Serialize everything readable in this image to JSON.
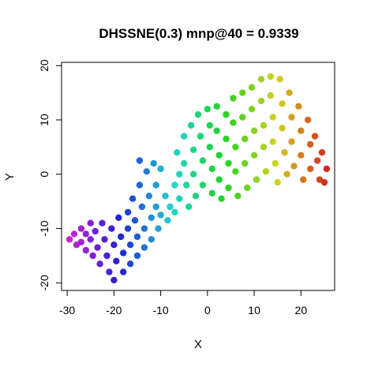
{
  "chart_data": {
    "type": "scatter",
    "title": "DHSSNE(0.3) mnp@40 = 0.9339",
    "xlabel": "X",
    "ylabel": "Y",
    "xlim": [
      -31.2,
      27.2
    ],
    "ylim": [
      -21.4,
      20.6
    ],
    "xticks": [
      -30,
      -20,
      -10,
      0,
      10,
      20
    ],
    "yticks": [
      -20,
      -10,
      0,
      10,
      20
    ],
    "xtick_labels": [
      "-30",
      "-20",
      "-10",
      "0",
      "10",
      "20"
    ],
    "ytick_labels": [
      "-20",
      "-10",
      "0",
      "10",
      "20"
    ],
    "grid": false,
    "legend": "none",
    "color_encoding": "rainbow gradient along manifold, magenta (left) through blue, cyan, green, yellow to red (right)",
    "point_color": "#3fbf3f",
    "series": [
      {
        "points": [
          [
            -29.5,
            -12.0
          ],
          [
            -28.5,
            -11.0
          ],
          [
            -28.0,
            -13.0
          ],
          [
            -27.0,
            -10.0
          ],
          [
            -27.0,
            -12.5
          ],
          [
            -26.0,
            -11.0
          ],
          [
            -26.0,
            -14.0
          ],
          [
            -25.0,
            -9.0
          ],
          [
            -25.0,
            -12.0
          ],
          [
            -24.5,
            -15.0
          ],
          [
            -24.0,
            -10.5
          ],
          [
            -23.5,
            -13.5
          ],
          [
            -23.0,
            -16.5
          ],
          [
            -22.5,
            -9.0
          ],
          [
            -22.0,
            -12.0
          ],
          [
            -21.5,
            -15.0
          ],
          [
            -21.0,
            -18.0
          ],
          [
            -20.5,
            -10.0
          ],
          [
            -20.0,
            -13.0
          ],
          [
            -20.0,
            -19.5
          ],
          [
            -19.5,
            -16.0
          ],
          [
            -19.0,
            -8.0
          ],
          [
            -18.5,
            -11.5
          ],
          [
            -18.0,
            -14.5
          ],
          [
            -18.0,
            -18.0
          ],
          [
            -17.0,
            -7.0
          ],
          [
            -17.0,
            -10.0
          ],
          [
            -16.5,
            -13.0
          ],
          [
            -16.5,
            -16.5
          ],
          [
            -16.0,
            -4.5
          ],
          [
            -15.5,
            -8.5
          ],
          [
            -15.0,
            -11.5
          ],
          [
            -15.0,
            -15.0
          ],
          [
            -14.5,
            2.5
          ],
          [
            -14.5,
            -2.0
          ],
          [
            -14.0,
            -6.0
          ],
          [
            -13.5,
            -10.0
          ],
          [
            -13.5,
            -13.5
          ],
          [
            -13.0,
            0.5
          ],
          [
            -12.5,
            -4.0
          ],
          [
            -12.0,
            -8.0
          ],
          [
            -12.0,
            -12.0
          ],
          [
            -11.5,
            2.0
          ],
          [
            -11.0,
            -2.0
          ],
          [
            -11.0,
            -6.0
          ],
          [
            -10.5,
            -10.0
          ],
          [
            -10.0,
            1.0
          ],
          [
            -10.0,
            -7.5
          ],
          [
            -9.0,
            -4.0
          ],
          [
            -8.5,
            -8.5
          ],
          [
            -8.0,
            -6.0
          ],
          [
            -7.0,
            -2.0
          ],
          [
            -7.0,
            -7.0
          ],
          [
            -6.5,
            4.0
          ],
          [
            -6.0,
            0.0
          ],
          [
            -6.0,
            -4.5
          ],
          [
            -5.0,
            7.0
          ],
          [
            -5.0,
            2.0
          ],
          [
            -4.5,
            -2.0
          ],
          [
            -4.0,
            -6.0
          ],
          [
            -3.5,
            9.0
          ],
          [
            -3.0,
            4.5
          ],
          [
            -3.0,
            0.0
          ],
          [
            -2.5,
            -4.0
          ],
          [
            -2.0,
            11.0
          ],
          [
            -1.5,
            7.0
          ],
          [
            -1.0,
            2.5
          ],
          [
            -1.0,
            -2.0
          ],
          [
            0.0,
            12.0
          ],
          [
            0.5,
            9.0
          ],
          [
            0.5,
            5.0
          ],
          [
            1.0,
            1.0
          ],
          [
            1.0,
            -3.5
          ],
          [
            2.0,
            12.5
          ],
          [
            2.0,
            8.0
          ],
          [
            2.5,
            3.5
          ],
          [
            2.5,
            -1.0
          ],
          [
            3.0,
            -4.5
          ],
          [
            4.0,
            11.0
          ],
          [
            4.0,
            6.5
          ],
          [
            4.5,
            2.0
          ],
          [
            4.5,
            -2.5
          ],
          [
            5.5,
            14.0
          ],
          [
            5.5,
            9.5
          ],
          [
            6.0,
            5.0
          ],
          [
            6.0,
            0.5
          ],
          [
            6.5,
            -4.0
          ],
          [
            7.5,
            15.0
          ],
          [
            7.5,
            10.5
          ],
          [
            8.0,
            6.5
          ],
          [
            8.0,
            2.0
          ],
          [
            8.5,
            -2.5
          ],
          [
            9.5,
            16.0
          ],
          [
            9.5,
            12.0
          ],
          [
            10.0,
            8.0
          ],
          [
            10.0,
            3.5
          ],
          [
            10.5,
            -1.0
          ],
          [
            11.5,
            17.5
          ],
          [
            11.5,
            13.5
          ],
          [
            12.0,
            9.0
          ],
          [
            12.0,
            5.0
          ],
          [
            12.5,
            0.5
          ],
          [
            13.5,
            18.0
          ],
          [
            13.5,
            14.5
          ],
          [
            14.0,
            10.5
          ],
          [
            14.0,
            6.0
          ],
          [
            14.5,
            2.0
          ],
          [
            15.0,
            -1.5
          ],
          [
            15.5,
            17.5
          ],
          [
            16.0,
            13.0
          ],
          [
            16.0,
            8.5
          ],
          [
            16.5,
            4.0
          ],
          [
            17.0,
            0.0
          ],
          [
            17.5,
            15.0
          ],
          [
            18.0,
            10.5
          ],
          [
            18.0,
            6.0
          ],
          [
            18.5,
            1.5
          ],
          [
            19.5,
            12.5
          ],
          [
            20.0,
            8.0
          ],
          [
            20.0,
            3.5
          ],
          [
            20.5,
            -1.0
          ],
          [
            21.5,
            10.0
          ],
          [
            22.0,
            5.5
          ],
          [
            22.0,
            1.0
          ],
          [
            23.0,
            7.0
          ],
          [
            23.5,
            2.5
          ],
          [
            24.0,
            -1.0
          ],
          [
            24.5,
            4.0
          ],
          [
            25.5,
            1.0
          ],
          [
            25.0,
            -1.5
          ]
        ]
      }
    ]
  }
}
